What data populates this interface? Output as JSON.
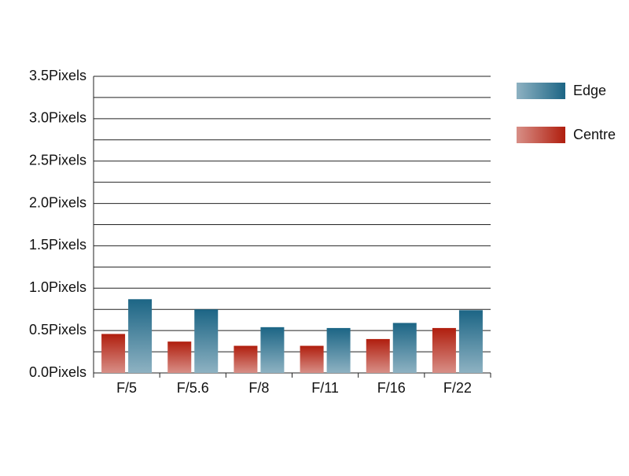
{
  "chart_data": {
    "type": "bar",
    "categories": [
      "F/5",
      "F/5.6",
      "F/8",
      "F/11",
      "F/16",
      "F/22"
    ],
    "series": [
      {
        "name": "Centre",
        "color": "#b01e0e",
        "values": [
          0.46,
          0.37,
          0.32,
          0.32,
          0.4,
          0.53
        ]
      },
      {
        "name": "Edge",
        "color": "#1c6585",
        "values": [
          0.87,
          0.75,
          0.54,
          0.53,
          0.59,
          0.74
        ]
      }
    ],
    "ylim": [
      0,
      3.5
    ],
    "yticks": [
      {
        "value": 0,
        "label": "0.0Pixels"
      },
      {
        "value": 0.5,
        "label": "0.5Pixels"
      },
      {
        "value": 1,
        "label": "1.0Pixels"
      },
      {
        "value": 1.5,
        "label": "1.5Pixels"
      },
      {
        "value": 2,
        "label": "2.0Pixels"
      },
      {
        "value": 2.5,
        "label": "2.5Pixels"
      },
      {
        "value": 3,
        "label": "3.0Pixels"
      },
      {
        "value": 3.5,
        "label": "3.5Pixels"
      }
    ],
    "minor_yticks": [
      0.25,
      0.75,
      1.25,
      1.75,
      2.25,
      2.75,
      3.25
    ],
    "grid": true,
    "legend": "right"
  }
}
